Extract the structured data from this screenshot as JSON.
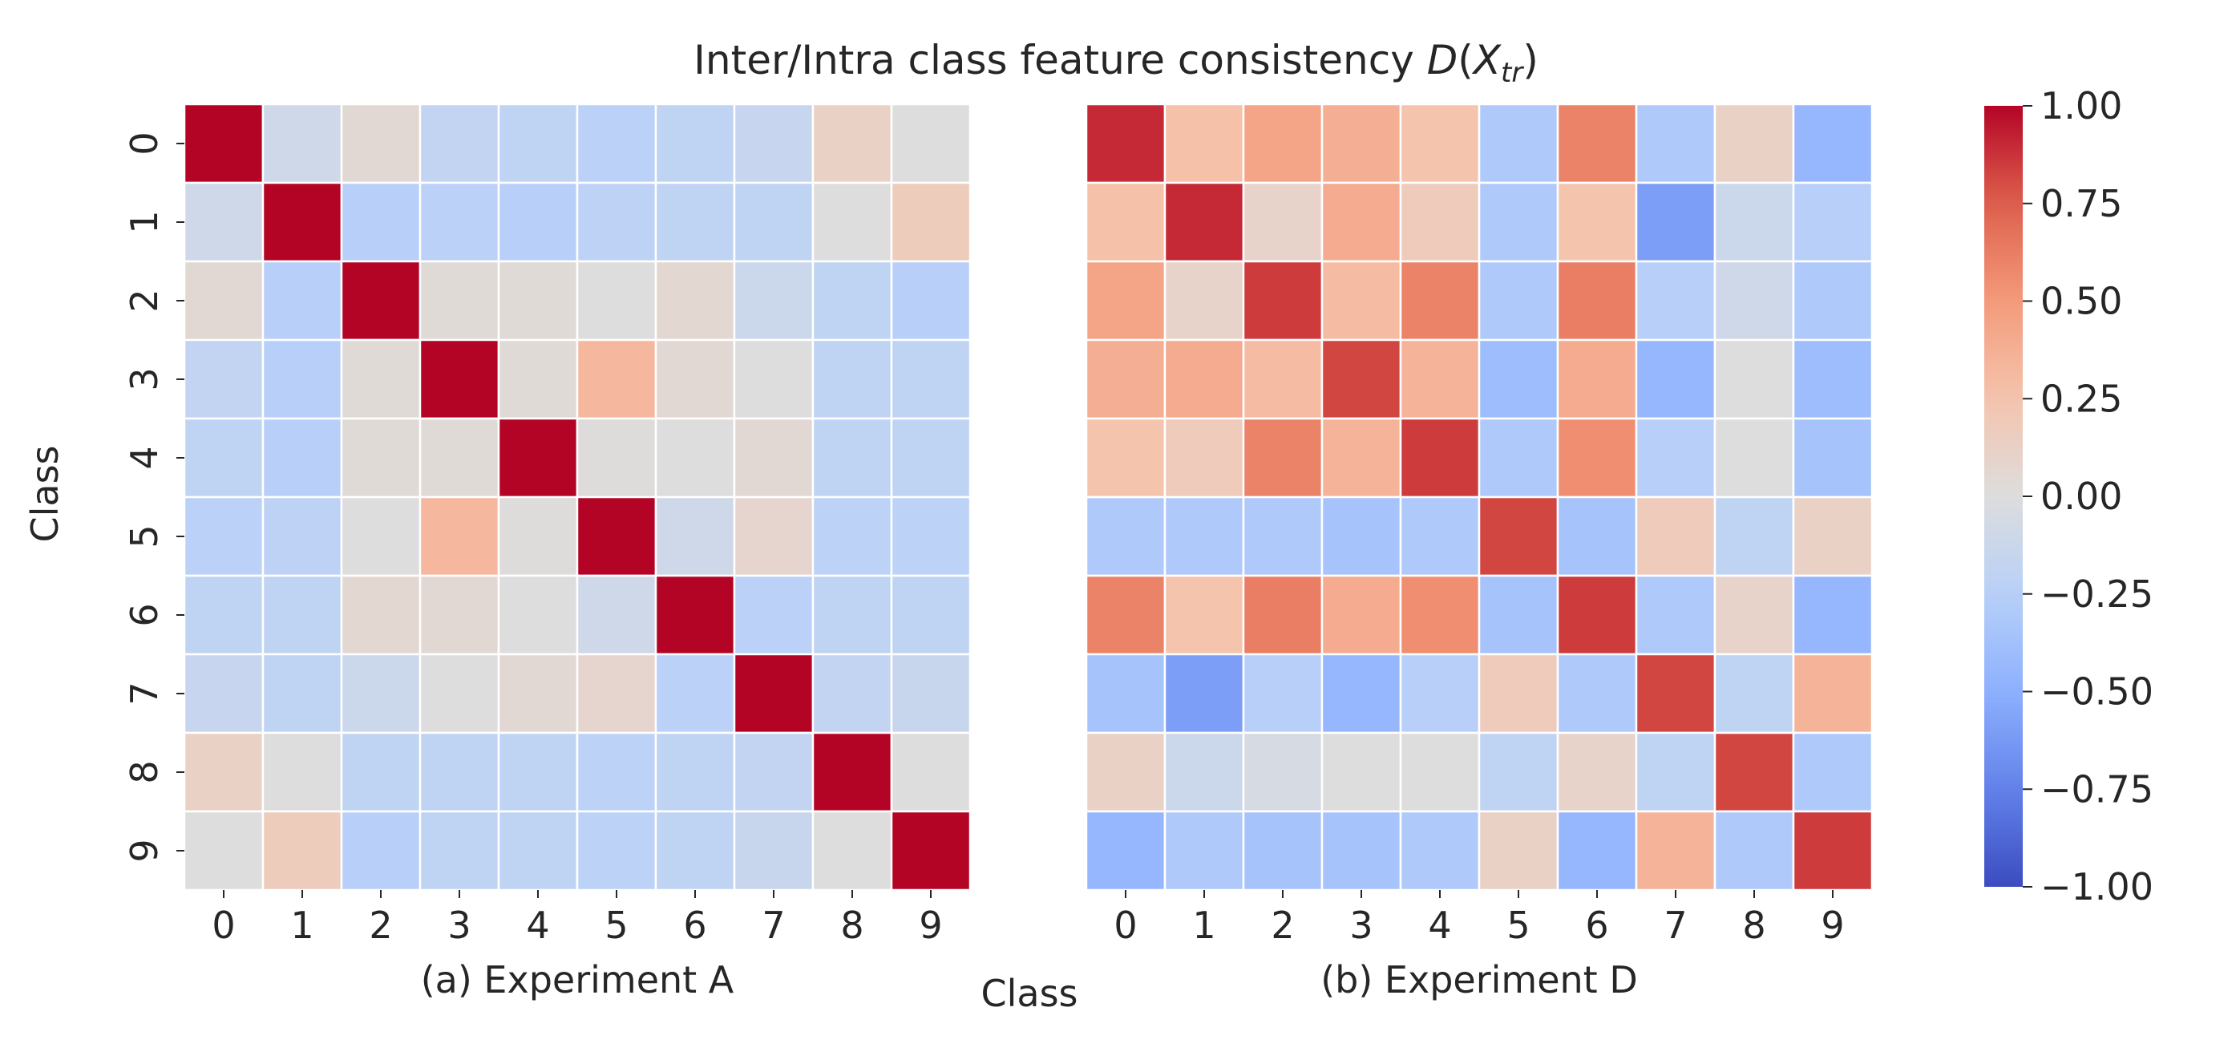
{
  "chart_data": {
    "type": "heatmap",
    "title_prefix": "Inter/Intra class feature consistency ",
    "title_math": "D",
    "title_math_open": "(",
    "title_math_var": "X",
    "title_math_sub": "tr",
    "title_math_close": ")",
    "ylabel": "Class",
    "xlabel": "Class",
    "row_labels": [
      "0",
      "1",
      "2",
      "3",
      "4",
      "5",
      "6",
      "7",
      "8",
      "9"
    ],
    "col_labels": [
      "0",
      "1",
      "2",
      "3",
      "4",
      "5",
      "6",
      "7",
      "8",
      "9"
    ],
    "vmin": -1.0,
    "vmax": 1.0,
    "colormap": "coolwarm",
    "colorbar_ticks": [
      "1.00",
      "0.75",
      "0.50",
      "0.25",
      "0.00",
      "−0.25",
      "−0.50",
      "−0.75",
      "−1.00"
    ],
    "colorbar_tick_values": [
      1.0,
      0.75,
      0.5,
      0.25,
      0.0,
      -0.25,
      -0.5,
      -0.75,
      -1.0
    ],
    "panels": [
      {
        "caption": "(a) Experiment A",
        "values": [
          [
            1.0,
            -0.1,
            0.05,
            -0.18,
            -0.2,
            -0.23,
            -0.2,
            -0.15,
            0.12,
            0.0
          ],
          [
            -0.1,
            1.0,
            -0.25,
            -0.23,
            -0.25,
            -0.21,
            -0.2,
            -0.2,
            0.0,
            0.17
          ],
          [
            0.05,
            -0.25,
            1.0,
            0.03,
            0.03,
            0.0,
            0.06,
            -0.12,
            -0.2,
            -0.25
          ],
          [
            -0.18,
            -0.25,
            0.03,
            1.0,
            0.03,
            0.32,
            0.05,
            0.0,
            -0.2,
            -0.2
          ],
          [
            -0.2,
            -0.25,
            0.03,
            0.03,
            1.0,
            0.01,
            0.0,
            0.05,
            -0.2,
            -0.2
          ],
          [
            -0.23,
            -0.21,
            0.0,
            0.32,
            0.01,
            1.0,
            -0.1,
            0.08,
            -0.22,
            -0.22
          ],
          [
            -0.2,
            -0.2,
            0.06,
            0.05,
            0.0,
            -0.1,
            1.0,
            -0.23,
            -0.2,
            -0.2
          ],
          [
            -0.15,
            -0.2,
            -0.12,
            0.0,
            0.05,
            0.08,
            -0.23,
            1.0,
            -0.18,
            -0.14
          ],
          [
            0.12,
            0.0,
            -0.2,
            -0.2,
            -0.2,
            -0.22,
            -0.2,
            -0.18,
            1.0,
            0.0
          ],
          [
            0.0,
            0.17,
            -0.25,
            -0.2,
            -0.2,
            -0.22,
            -0.2,
            -0.14,
            0.0,
            1.0
          ]
        ]
      },
      {
        "caption": "(b) Experiment D",
        "values": [
          [
            0.9,
            0.27,
            0.44,
            0.38,
            0.25,
            -0.3,
            0.6,
            -0.3,
            0.12,
            -0.45
          ],
          [
            0.27,
            0.9,
            0.1,
            0.4,
            0.18,
            -0.3,
            0.25,
            -0.6,
            -0.12,
            -0.25
          ],
          [
            0.44,
            0.1,
            0.85,
            0.3,
            0.6,
            -0.3,
            0.62,
            -0.25,
            -0.1,
            -0.3
          ],
          [
            0.38,
            0.4,
            0.3,
            0.82,
            0.35,
            -0.4,
            0.4,
            -0.45,
            0.0,
            -0.4
          ],
          [
            0.25,
            0.18,
            0.6,
            0.35,
            0.85,
            -0.3,
            0.55,
            -0.25,
            0.0,
            -0.35
          ],
          [
            -0.3,
            -0.3,
            -0.3,
            -0.35,
            -0.3,
            0.82,
            -0.35,
            0.18,
            -0.2,
            0.12
          ],
          [
            0.6,
            0.25,
            0.62,
            0.4,
            0.55,
            -0.35,
            0.85,
            -0.3,
            0.1,
            -0.45
          ],
          [
            -0.35,
            -0.6,
            -0.25,
            -0.45,
            -0.25,
            0.18,
            -0.3,
            0.82,
            -0.2,
            0.35
          ],
          [
            0.12,
            -0.12,
            -0.05,
            0.0,
            0.0,
            -0.2,
            0.1,
            -0.2,
            0.82,
            -0.3
          ],
          [
            -0.45,
            -0.3,
            -0.35,
            -0.35,
            -0.3,
            0.12,
            -0.45,
            0.35,
            -0.3,
            0.85
          ]
        ]
      }
    ]
  }
}
